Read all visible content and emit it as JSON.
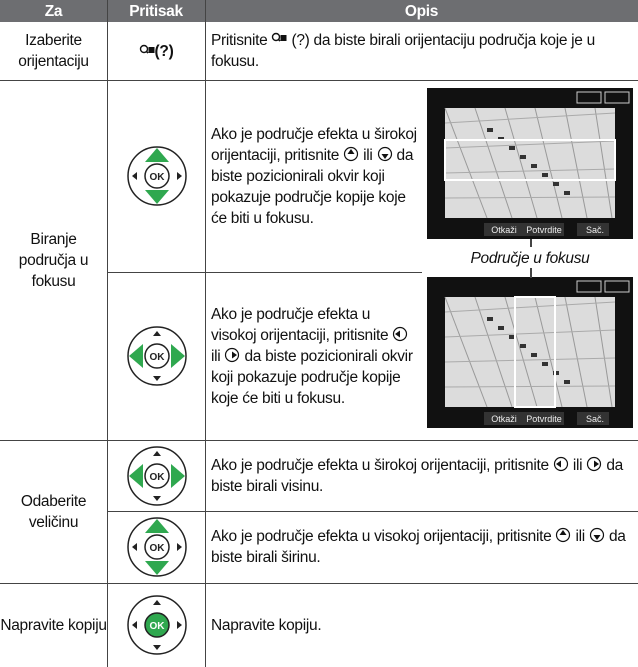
{
  "header": {
    "col1": "Za",
    "col2": "Pritisak",
    "col3": "Opis"
  },
  "rows": [
    {
      "za": "Izaberite orijentaciju",
      "pritisak": "(?)",
      "opis": [
        "Pritisnite",
        "(?) da biste birali orijentaciju područja koje je u fokusu."
      ]
    },
    {
      "za": "Biranje područja u fokusu",
      "opis_a": [
        "Ako je područje efekta u širokoj orijentaciji, pritisnite",
        "ili",
        "da biste pozicionirali okvir koji pokazuje područje kopije koje će biti u fokusu."
      ],
      "opis_b": [
        "Ako je područje efekta u visokoj orijentaciji, pritisnite",
        "ili",
        "da biste pozicionirali okvir koji pokazuje područje kopije koje će biti u fokusu."
      ]
    },
    {
      "za": "Odaberite veličinu",
      "opis_a": [
        "Ako je područje efekta u širokoj orijentaciji, pritisnite",
        "ili",
        "da biste birali visinu."
      ],
      "opis_b": [
        "Ako je područje efekta u visokoj orijentaciji, pritisnite",
        "ili",
        "da biste birali širinu."
      ]
    },
    {
      "za": "Napravite kopiju",
      "opis": [
        "Napravite kopiju."
      ]
    }
  ],
  "figure": {
    "caption": "Područje u fokusu",
    "ok": "OK",
    "buttons": [
      "Otkaži",
      "Potvrdite",
      "Sač."
    ]
  }
}
